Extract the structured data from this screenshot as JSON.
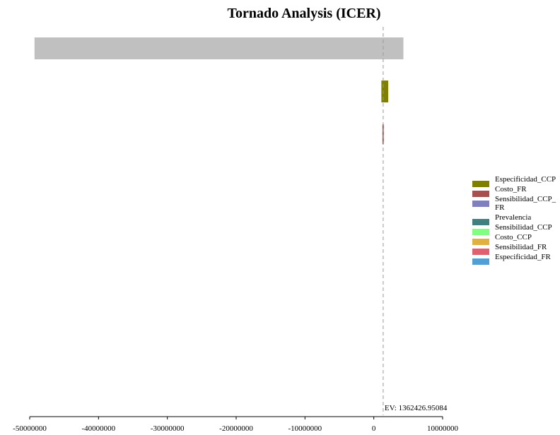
{
  "chart_data": {
    "type": "tornado",
    "title": "Tornado Analysis (ICER)",
    "xlim": [
      -50000000,
      10000000
    ],
    "x_ticks": [
      "-50000000",
      "-40000000",
      "-30000000",
      "-20000000",
      "-10000000",
      "0",
      "10000000"
    ],
    "x_tick_values": [
      -50000000,
      -40000000,
      -30000000,
      -20000000,
      -10000000,
      0,
      10000000
    ],
    "expected_value": 1362426.95084,
    "ev_label": "EV: 1362426.95084",
    "bars": [
      {
        "low": -49300000,
        "high": 4300000,
        "color": "#c0c0c0"
      },
      {
        "low": 1100000,
        "high": 2100000,
        "color": "#808000"
      },
      {
        "low": 1250000,
        "high": 1450000,
        "color": "#a85050"
      }
    ],
    "legend": [
      {
        "label": "Especificidad_CCP",
        "color": "#808000"
      },
      {
        "label": "Costo_FR",
        "color": "#a85050"
      },
      {
        "label": "Sensibilidad_CCP_FR",
        "color": "#8080c0"
      },
      {
        "label": "Prevalencia",
        "color": "#408080"
      },
      {
        "label": "Sensibilidad_CCP",
        "color": "#80ff80"
      },
      {
        "label": "Costo_CCP",
        "color": "#e0b040"
      },
      {
        "label": "Sensibilidad_FR",
        "color": "#e06070"
      },
      {
        "label": "Especificidad_FR",
        "color": "#50a0d8"
      }
    ]
  }
}
